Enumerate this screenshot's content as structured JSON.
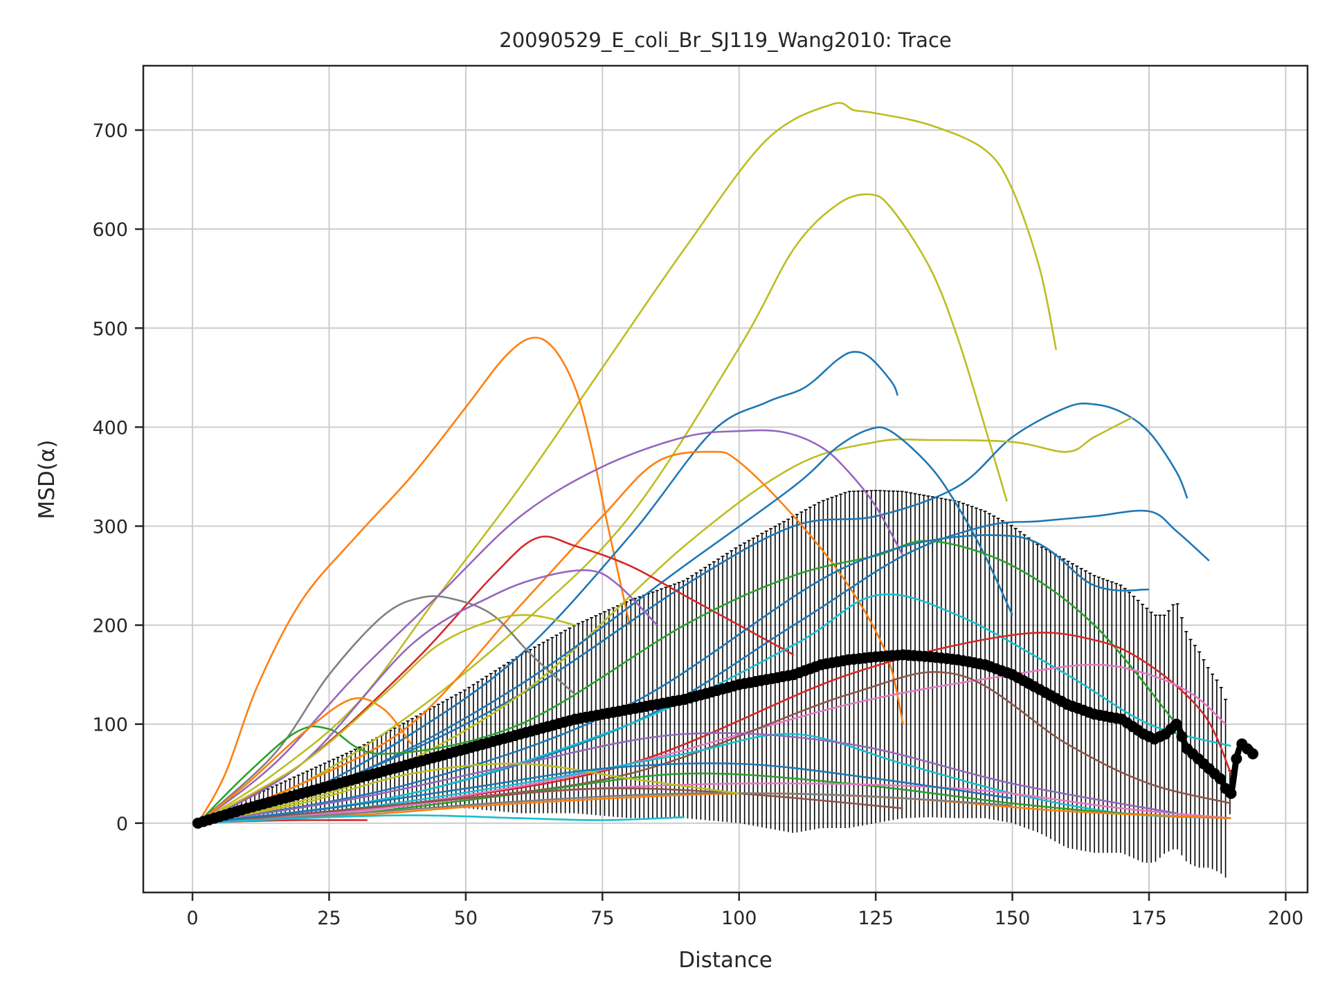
{
  "chart_data": {
    "type": "line",
    "title": "20090529_E_coli_Br_SJ119_Wang2010: Trace",
    "xlabel": "Distance",
    "ylabel": "MSD(α)",
    "xlim": [
      -9,
      204
    ],
    "ylim": [
      -70,
      765
    ],
    "xticks": [
      0,
      25,
      50,
      75,
      100,
      125,
      150,
      175,
      200
    ],
    "yticks": [
      0,
      100,
      200,
      300,
      400,
      500,
      600,
      700
    ],
    "grid": true,
    "legend": "none",
    "colors": {
      "tab-blue": "#1f77b4",
      "tab-orange": "#ff7f0e",
      "tab-green": "#2ca02c",
      "tab-red": "#d62728",
      "tab-purple": "#9467bd",
      "tab-brown": "#8c564b",
      "tab-pink": "#e377c2",
      "tab-gray": "#7f7f7f",
      "tab-olive": "#bcbd22",
      "tab-cyan": "#17becf",
      "mean": "#000000"
    },
    "traces": [
      {
        "color": "#bcbd22",
        "x": [
          1,
          15,
          30,
          45,
          60,
          75,
          90,
          105,
          117,
          121,
          125,
          135,
          145,
          150,
          155,
          158
        ],
        "y": [
          0,
          50,
          120,
          230,
          340,
          460,
          580,
          690,
          726,
          720,
          717,
          705,
          680,
          640,
          560,
          478
        ]
      },
      {
        "color": "#bcbd22",
        "x": [
          1,
          20,
          40,
          60,
          80,
          100,
          110,
          118,
          124,
          128,
          135,
          140,
          145,
          149
        ],
        "y": [
          0,
          40,
          110,
          200,
          310,
          480,
          580,
          625,
          635,
          620,
          560,
          490,
          400,
          325
        ]
      },
      {
        "color": "#ff7f0e",
        "x": [
          1,
          6,
          12,
          20,
          30,
          40,
          50,
          57,
          62,
          66,
          70,
          73,
          76,
          80
        ],
        "y": [
          0,
          50,
          140,
          225,
          290,
          350,
          420,
          470,
          490,
          480,
          440,
          380,
          300,
          200
        ]
      },
      {
        "color": "#1f77b4",
        "x": [
          1,
          20,
          40,
          60,
          80,
          95,
          105,
          112,
          118,
          121,
          124,
          128,
          129
        ],
        "y": [
          0,
          30,
          90,
          170,
          290,
          395,
          425,
          440,
          468,
          476,
          470,
          445,
          432
        ]
      },
      {
        "color": "#1f77b4",
        "x": [
          1,
          30,
          60,
          90,
          110,
          125,
          140,
          150,
          160,
          165,
          170,
          175,
          180,
          182
        ],
        "y": [
          0,
          50,
          130,
          240,
          300,
          310,
          340,
          390,
          420,
          423,
          415,
          395,
          355,
          328
        ]
      },
      {
        "color": "#bcbd22",
        "x": [
          1,
          30,
          60,
          90,
          110,
          125,
          135,
          150,
          160,
          165,
          172
        ],
        "y": [
          0,
          40,
          130,
          280,
          360,
          385,
          387,
          385,
          375,
          390,
          410
        ]
      },
      {
        "color": "#9467bd",
        "x": [
          1,
          15,
          30,
          45,
          60,
          75,
          90,
          100,
          108,
          115,
          120,
          125,
          130
        ],
        "y": [
          0,
          60,
          150,
          230,
          310,
          360,
          390,
          396,
          395,
          380,
          355,
          320,
          270
        ]
      },
      {
        "color": "#ff7f0e",
        "x": [
          1,
          20,
          40,
          60,
          75,
          85,
          95,
          100,
          110,
          120,
          127,
          130
        ],
        "y": [
          0,
          40,
          100,
          220,
          310,
          365,
          375,
          365,
          310,
          240,
          170,
          100
        ]
      },
      {
        "color": "#1f77b4",
        "x": [
          1,
          30,
          60,
          90,
          110,
          118,
          124,
          128,
          135,
          140,
          145,
          150
        ],
        "y": [
          0,
          50,
          140,
          260,
          340,
          380,
          398,
          395,
          360,
          320,
          270,
          210
        ]
      },
      {
        "color": "#1f77b4",
        "x": [
          1,
          40,
          80,
          110,
          130,
          145,
          155,
          165,
          175,
          180,
          186
        ],
        "y": [
          0,
          30,
          100,
          200,
          270,
          300,
          305,
          310,
          315,
          295,
          265
        ]
      },
      {
        "color": "#d62728",
        "x": [
          1,
          20,
          40,
          55,
          63,
          70,
          80,
          90,
          100,
          110
        ],
        "y": [
          0,
          60,
          160,
          250,
          288,
          280,
          260,
          230,
          200,
          170
        ]
      },
      {
        "color": "#7f7f7f",
        "x": [
          1,
          15,
          25,
          35,
          42,
          48,
          55,
          62,
          70
        ],
        "y": [
          0,
          70,
          150,
          210,
          228,
          226,
          210,
          170,
          130
        ]
      },
      {
        "color": "#2ca02c",
        "x": [
          1,
          10,
          19,
          25,
          35,
          60,
          90,
          110,
          125,
          135,
          150,
          165,
          180
        ],
        "y": [
          0,
          50,
          92,
          95,
          70,
          100,
          200,
          250,
          270,
          285,
          260,
          200,
          100
        ]
      },
      {
        "color": "#9467bd",
        "x": [
          1,
          20,
          40,
          55,
          65,
          73,
          78,
          85
        ],
        "y": [
          0,
          60,
          180,
          230,
          250,
          255,
          240,
          200
        ]
      },
      {
        "color": "#ff7f0e",
        "x": [
          1,
          10,
          20,
          29,
          35,
          40
        ],
        "y": [
          0,
          40,
          90,
          125,
          115,
          80
        ]
      },
      {
        "color": "#1f77b4",
        "x": [
          1,
          40,
          80,
          120,
          150,
          165,
          175
        ],
        "y": [
          0,
          40,
          120,
          260,
          290,
          240,
          236
        ]
      },
      {
        "color": "#17becf",
        "x": [
          1,
          40,
          80,
          110,
          125,
          140,
          160,
          175,
          190
        ],
        "y": [
          0,
          30,
          100,
          180,
          230,
          210,
          150,
          100,
          78
        ]
      },
      {
        "color": "#d62728",
        "x": [
          1,
          40,
          80,
          120,
          150,
          165,
          175,
          185,
          190
        ],
        "y": [
          0,
          20,
          60,
          150,
          190,
          185,
          160,
          110,
          50
        ]
      },
      {
        "color": "#e377c2",
        "x": [
          1,
          40,
          80,
          120,
          150,
          165,
          175,
          183,
          189
        ],
        "y": [
          0,
          20,
          60,
          120,
          150,
          160,
          150,
          130,
          100
        ]
      },
      {
        "color": "#8c564b",
        "x": [
          1,
          40,
          80,
          120,
          140,
          160,
          175,
          190
        ],
        "y": [
          0,
          20,
          50,
          130,
          150,
          80,
          40,
          20
        ]
      },
      {
        "color": "#bcbd22",
        "x": [
          1,
          20,
          35,
          45,
          55,
          62,
          70
        ],
        "y": [
          0,
          60,
          130,
          180,
          205,
          210,
          200
        ]
      },
      {
        "color": "#17becf",
        "x": [
          1,
          30,
          60,
          90,
          110,
          130,
          150,
          170,
          190
        ],
        "y": [
          0,
          15,
          40,
          70,
          90,
          60,
          30,
          10,
          5
        ]
      },
      {
        "color": "#2ca02c",
        "x": [
          1,
          30,
          60,
          90,
          120,
          150,
          170,
          190
        ],
        "y": [
          0,
          10,
          30,
          50,
          40,
          20,
          10,
          5
        ]
      },
      {
        "color": "#e377c2",
        "x": [
          1,
          30,
          60,
          100,
          140,
          170,
          190
        ],
        "y": [
          0,
          12,
          30,
          40,
          35,
          15,
          5
        ]
      },
      {
        "color": "#ff7f0e",
        "x": [
          1,
          30,
          60,
          100,
          130,
          160,
          190
        ],
        "y": [
          0,
          8,
          20,
          30,
          25,
          12,
          5
        ]
      },
      {
        "color": "#9467bd",
        "x": [
          1,
          30,
          60,
          90,
          120,
          150,
          180
        ],
        "y": [
          0,
          25,
          60,
          90,
          80,
          40,
          10
        ]
      },
      {
        "color": "#8c564b",
        "x": [
          1,
          25,
          50,
          75,
          100,
          130
        ],
        "y": [
          0,
          12,
          25,
          35,
          30,
          15
        ]
      },
      {
        "color": "#d62728",
        "x": [
          1,
          10,
          20,
          32
        ],
        "y": [
          0,
          2,
          3,
          3
        ]
      },
      {
        "color": "#7f7f7f",
        "x": [
          1,
          30,
          60,
          90,
          120,
          150
        ],
        "y": [
          0,
          10,
          22,
          30,
          28,
          18
        ]
      },
      {
        "color": "#17becf",
        "x": [
          1,
          20,
          40,
          60,
          75,
          90
        ],
        "y": [
          0,
          5,
          8,
          5,
          3,
          6
        ]
      },
      {
        "color": "#bcbd22",
        "x": [
          1,
          20,
          40,
          60,
          80,
          100
        ],
        "y": [
          0,
          20,
          50,
          60,
          45,
          30
        ]
      },
      {
        "color": "#1f77b4",
        "x": [
          1,
          25,
          50,
          75,
          100,
          125,
          150
        ],
        "y": [
          0,
          15,
          35,
          55,
          60,
          45,
          25
        ]
      }
    ],
    "mean": {
      "color": "#000000",
      "x": [
        1,
        10,
        20,
        30,
        40,
        50,
        60,
        70,
        80,
        90,
        100,
        110,
        115,
        120,
        125,
        130,
        135,
        140,
        145,
        150,
        155,
        160,
        165,
        170,
        174,
        176,
        178,
        180,
        182,
        184,
        186,
        188,
        189,
        190,
        191,
        192,
        193,
        194
      ],
      "y": [
        0,
        15,
        30,
        45,
        60,
        75,
        90,
        105,
        115,
        125,
        140,
        150,
        160,
        165,
        168,
        170,
        168,
        165,
        160,
        150,
        135,
        120,
        110,
        105,
        90,
        85,
        90,
        100,
        75,
        65,
        55,
        45,
        35,
        30,
        65,
        80,
        75,
        70
      ],
      "err": [
        2,
        10,
        20,
        30,
        45,
        60,
        80,
        95,
        110,
        120,
        140,
        160,
        165,
        170,
        168,
        165,
        162,
        160,
        155,
        150,
        145,
        145,
        140,
        135,
        130,
        125,
        120,
        125,
        115,
        110,
        100,
        95,
        90,
        5,
        5,
        5,
        5,
        5
      ]
    }
  }
}
